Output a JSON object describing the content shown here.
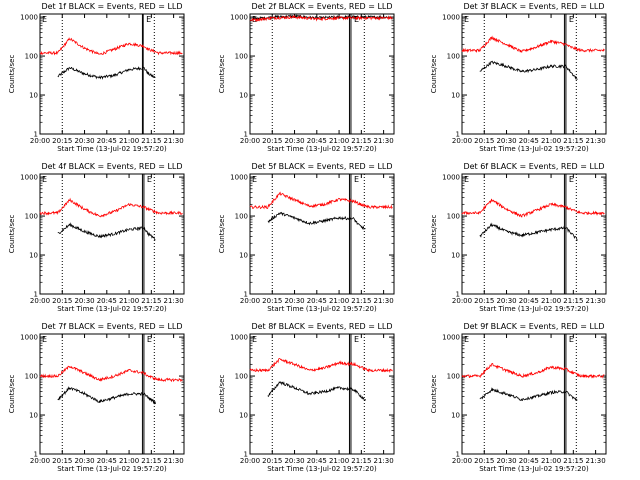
{
  "figure": {
    "xlabel": "Start Time (13-Jul-02 19:57:20)",
    "ylabel": "Counts/sec",
    "x_tick_labels": [
      "20:00",
      "20:15",
      "20:30",
      "20:45",
      "21:00",
      "21:15",
      "21:30"
    ],
    "y_tick_labels": [
      "1",
      "10",
      "100",
      "1000"
    ],
    "colors": {
      "events": "#000000",
      "lld": "#ff0000"
    },
    "marker_label": "E"
  },
  "chart_data": [
    {
      "type": "line",
      "title": "Det 1f BLACK = Events, RED = LLD",
      "xlim": [
        "20:00",
        "21:37"
      ],
      "ylim": [
        1,
        1200
      ],
      "yscale": "log",
      "x": [
        "20:12",
        "20:20",
        "20:30",
        "20:40",
        "20:50",
        "21:00",
        "21:10",
        "21:13",
        "21:20"
      ],
      "series": [
        {
          "name": "Events",
          "color": "#000000",
          "values": [
            30,
            50,
            35,
            28,
            32,
            45,
            50,
            35,
            25
          ],
          "end": "21:18"
        },
        {
          "name": "LLD",
          "color": "#ff0000",
          "values": [
            120,
            280,
            160,
            110,
            150,
            210,
            180,
            150,
            120
          ],
          "start": "20:00",
          "end": "21:36"
        }
      ],
      "vlines_dotted": [
        "20:15",
        "21:17"
      ],
      "vlines_solid": [
        "21:09",
        "21:09.5"
      ]
    },
    {
      "type": "line",
      "title": "Det 2f BLACK = Events, RED = LLD",
      "xlim": [
        "20:00",
        "21:37"
      ],
      "ylim": [
        1,
        1200
      ],
      "yscale": "log",
      "x": [
        "20:02",
        "20:15",
        "20:30",
        "20:45",
        "21:00",
        "21:15",
        "21:30"
      ],
      "series": [
        {
          "name": "Events",
          "color": "#000000",
          "values": [
            900,
            1000,
            1050,
            950,
            1000,
            1000,
            1000
          ],
          "end": "21:34"
        },
        {
          "name": "LLD",
          "color": "#ff0000",
          "values": [
            850,
            950,
            1000,
            900,
            950,
            950,
            950
          ],
          "start": "20:00",
          "end": "21:36"
        }
      ],
      "vlines_dotted": [
        "20:15",
        "21:17"
      ],
      "vlines_solid": [
        "21:07",
        "21:08"
      ]
    },
    {
      "type": "line",
      "title": "Det 3f BLACK = Events, RED = LLD",
      "xlim": [
        "20:00",
        "21:37"
      ],
      "ylim": [
        1,
        1200
      ],
      "yscale": "log",
      "x": [
        "20:12",
        "20:20",
        "20:30",
        "20:40",
        "20:50",
        "21:00",
        "21:10",
        "21:13",
        "21:20"
      ],
      "series": [
        {
          "name": "Events",
          "color": "#000000",
          "values": [
            40,
            70,
            55,
            40,
            45,
            55,
            55,
            40,
            20
          ],
          "end": "21:18"
        },
        {
          "name": "LLD",
          "color": "#ff0000",
          "values": [
            140,
            300,
            200,
            130,
            170,
            240,
            200,
            170,
            140
          ],
          "start": "20:00",
          "end": "21:36"
        }
      ],
      "vlines_dotted": [
        "20:15",
        "21:17"
      ],
      "vlines_solid": [
        "21:09",
        "21:10"
      ]
    },
    {
      "type": "line",
      "title": "Det 4f BLACK = Events, RED = LLD",
      "xlim": [
        "20:00",
        "21:37"
      ],
      "ylim": [
        1,
        1200
      ],
      "yscale": "log",
      "x": [
        "20:12",
        "20:20",
        "20:30",
        "20:40",
        "20:50",
        "21:00",
        "21:10",
        "21:13",
        "21:20"
      ],
      "series": [
        {
          "name": "Events",
          "color": "#000000",
          "values": [
            35,
            60,
            40,
            30,
            35,
            45,
            50,
            35,
            22
          ],
          "end": "21:18"
        },
        {
          "name": "LLD",
          "color": "#ff0000",
          "values": [
            120,
            260,
            150,
            100,
            130,
            200,
            170,
            150,
            120
          ],
          "start": "20:00",
          "end": "21:36"
        }
      ],
      "vlines_dotted": [
        "20:15",
        "21:17"
      ],
      "vlines_solid": [
        "21:09",
        "21:10"
      ]
    },
    {
      "type": "line",
      "title": "Det 5f BLACK = Events, RED = LLD",
      "xlim": [
        "20:00",
        "21:37"
      ],
      "ylim": [
        1,
        1200
      ],
      "yscale": "log",
      "x": [
        "20:12",
        "20:20",
        "20:30",
        "20:40",
        "20:50",
        "21:00",
        "21:10",
        "21:13",
        "21:20"
      ],
      "series": [
        {
          "name": "Events",
          "color": "#000000",
          "values": [
            70,
            120,
            90,
            65,
            75,
            90,
            85,
            60,
            40
          ],
          "end": "21:18"
        },
        {
          "name": "LLD",
          "color": "#ff0000",
          "values": [
            170,
            380,
            260,
            180,
            200,
            270,
            240,
            210,
            170
          ],
          "start": "20:00",
          "end": "21:36"
        }
      ],
      "vlines_dotted": [
        "20:15",
        "21:17"
      ],
      "vlines_solid": [
        "21:07",
        "21:08"
      ]
    },
    {
      "type": "line",
      "title": "Det 6f BLACK = Events, RED = LLD",
      "xlim": [
        "20:00",
        "21:37"
      ],
      "ylim": [
        1,
        1200
      ],
      "yscale": "log",
      "x": [
        "20:12",
        "20:20",
        "20:30",
        "20:40",
        "20:50",
        "21:00",
        "21:10",
        "21:13",
        "21:20"
      ],
      "series": [
        {
          "name": "Events",
          "color": "#000000",
          "values": [
            30,
            60,
            40,
            32,
            38,
            45,
            50,
            38,
            20
          ],
          "end": "21:18"
        },
        {
          "name": "LLD",
          "color": "#ff0000",
          "values": [
            120,
            260,
            150,
            100,
            140,
            200,
            170,
            150,
            120
          ],
          "start": "20:00",
          "end": "21:36"
        }
      ],
      "vlines_dotted": [
        "20:15",
        "21:17"
      ],
      "vlines_solid": [
        "21:09",
        "21:10"
      ]
    },
    {
      "type": "line",
      "title": "Det 7f BLACK = Events, RED = LLD",
      "xlim": [
        "20:00",
        "21:37"
      ],
      "ylim": [
        1,
        1200
      ],
      "yscale": "log",
      "x": [
        "20:12",
        "20:20",
        "20:30",
        "20:40",
        "20:50",
        "21:00",
        "21:10",
        "21:13",
        "21:20"
      ],
      "series": [
        {
          "name": "Events",
          "color": "#000000",
          "values": [
            25,
            50,
            35,
            22,
            28,
            35,
            35,
            28,
            18
          ],
          "end": "21:18"
        },
        {
          "name": "LLD",
          "color": "#ff0000",
          "values": [
            100,
            180,
            120,
            80,
            100,
            140,
            120,
            100,
            80
          ],
          "start": "20:00",
          "end": "21:36"
        }
      ],
      "vlines_dotted": [
        "20:15",
        "21:17"
      ],
      "vlines_solid": [
        "21:09",
        "21:10"
      ]
    },
    {
      "type": "line",
      "title": "Det 8f BLACK = Events, RED = LLD",
      "xlim": [
        "20:00",
        "21:37"
      ],
      "ylim": [
        1,
        1200
      ],
      "yscale": "log",
      "x": [
        "20:12",
        "20:20",
        "20:30",
        "20:40",
        "20:50",
        "21:00",
        "21:10",
        "21:13",
        "21:20"
      ],
      "series": [
        {
          "name": "Events",
          "color": "#000000",
          "values": [
            30,
            70,
            50,
            35,
            40,
            50,
            45,
            35,
            20
          ],
          "end": "21:18"
        },
        {
          "name": "LLD",
          "color": "#ff0000",
          "values": [
            140,
            270,
            200,
            140,
            160,
            220,
            200,
            180,
            140
          ],
          "start": "20:00",
          "end": "21:36"
        }
      ],
      "vlines_dotted": [
        "20:15",
        "21:17"
      ],
      "vlines_solid": [
        "21:07",
        "21:08"
      ]
    },
    {
      "type": "line",
      "title": "Det 9f BLACK = Events, RED = LLD",
      "xlim": [
        "20:00",
        "21:37"
      ],
      "ylim": [
        1,
        1200
      ],
      "yscale": "log",
      "x": [
        "20:12",
        "20:20",
        "20:30",
        "20:40",
        "20:50",
        "21:00",
        "21:10",
        "21:13",
        "21:20"
      ],
      "series": [
        {
          "name": "Events",
          "color": "#000000",
          "values": [
            25,
            45,
            35,
            25,
            30,
            38,
            40,
            32,
            20
          ],
          "end": "21:18"
        },
        {
          "name": "LLD",
          "color": "#ff0000",
          "values": [
            100,
            200,
            140,
            100,
            120,
            170,
            150,
            130,
            100
          ],
          "start": "20:00",
          "end": "21:36"
        }
      ],
      "vlines_dotted": [
        "20:15",
        "21:17"
      ],
      "vlines_solid": [
        "21:09",
        "21:10"
      ]
    }
  ]
}
